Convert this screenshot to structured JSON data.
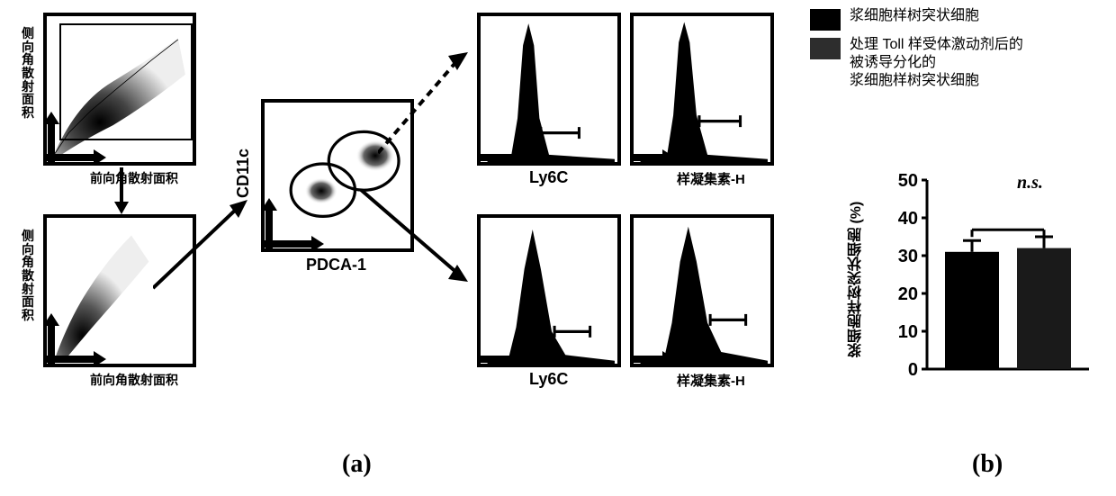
{
  "colors": {
    "border": "#000000",
    "background": "#ffffff",
    "hist_fill": "#000000",
    "scatter_dense": "#000000",
    "scatter_mid": "#555555",
    "scatter_light": "#aaaaaa",
    "legend1": "#000000",
    "legend2": "#2d2d2d",
    "bar1": "#000000",
    "bar2": "#1a1a1a",
    "axis": "#000000"
  },
  "panel_a": {
    "scatter_top": {
      "ylabel": "侧向角散射面积",
      "xlabel": "前向角散射面积"
    },
    "scatter_bottom": {
      "ylabel": "侧向角散射面积",
      "xlabel": "前向角散射面积"
    },
    "scatter_mid": {
      "ylabel": "CD11c",
      "xlabel": "PDCA-1"
    },
    "hist_labels": {
      "ly6c": "Ly6C",
      "lectin": "样凝集素-H"
    },
    "sub_label": "(a)"
  },
  "panel_b": {
    "legend": [
      {
        "label": "浆细胞样树突状细胞",
        "color": "#000000"
      },
      {
        "label": "处理 Toll 样受体激动剂后的\n被诱导分化的\n浆细胞样树突状细胞",
        "color": "#2d2d2d"
      }
    ],
    "bar_chart": {
      "ylabel": "浆细胞样树突状细胞 (%)",
      "ylim": [
        0,
        50
      ],
      "yticks": [
        0,
        10,
        20,
        30,
        40,
        50
      ],
      "bars": [
        {
          "value": 31,
          "error": 3,
          "color": "#000000"
        },
        {
          "value": 32,
          "error": 3,
          "color": "#1a1a1a"
        }
      ],
      "annotation": "n.s."
    },
    "sub_label": "(b)"
  }
}
